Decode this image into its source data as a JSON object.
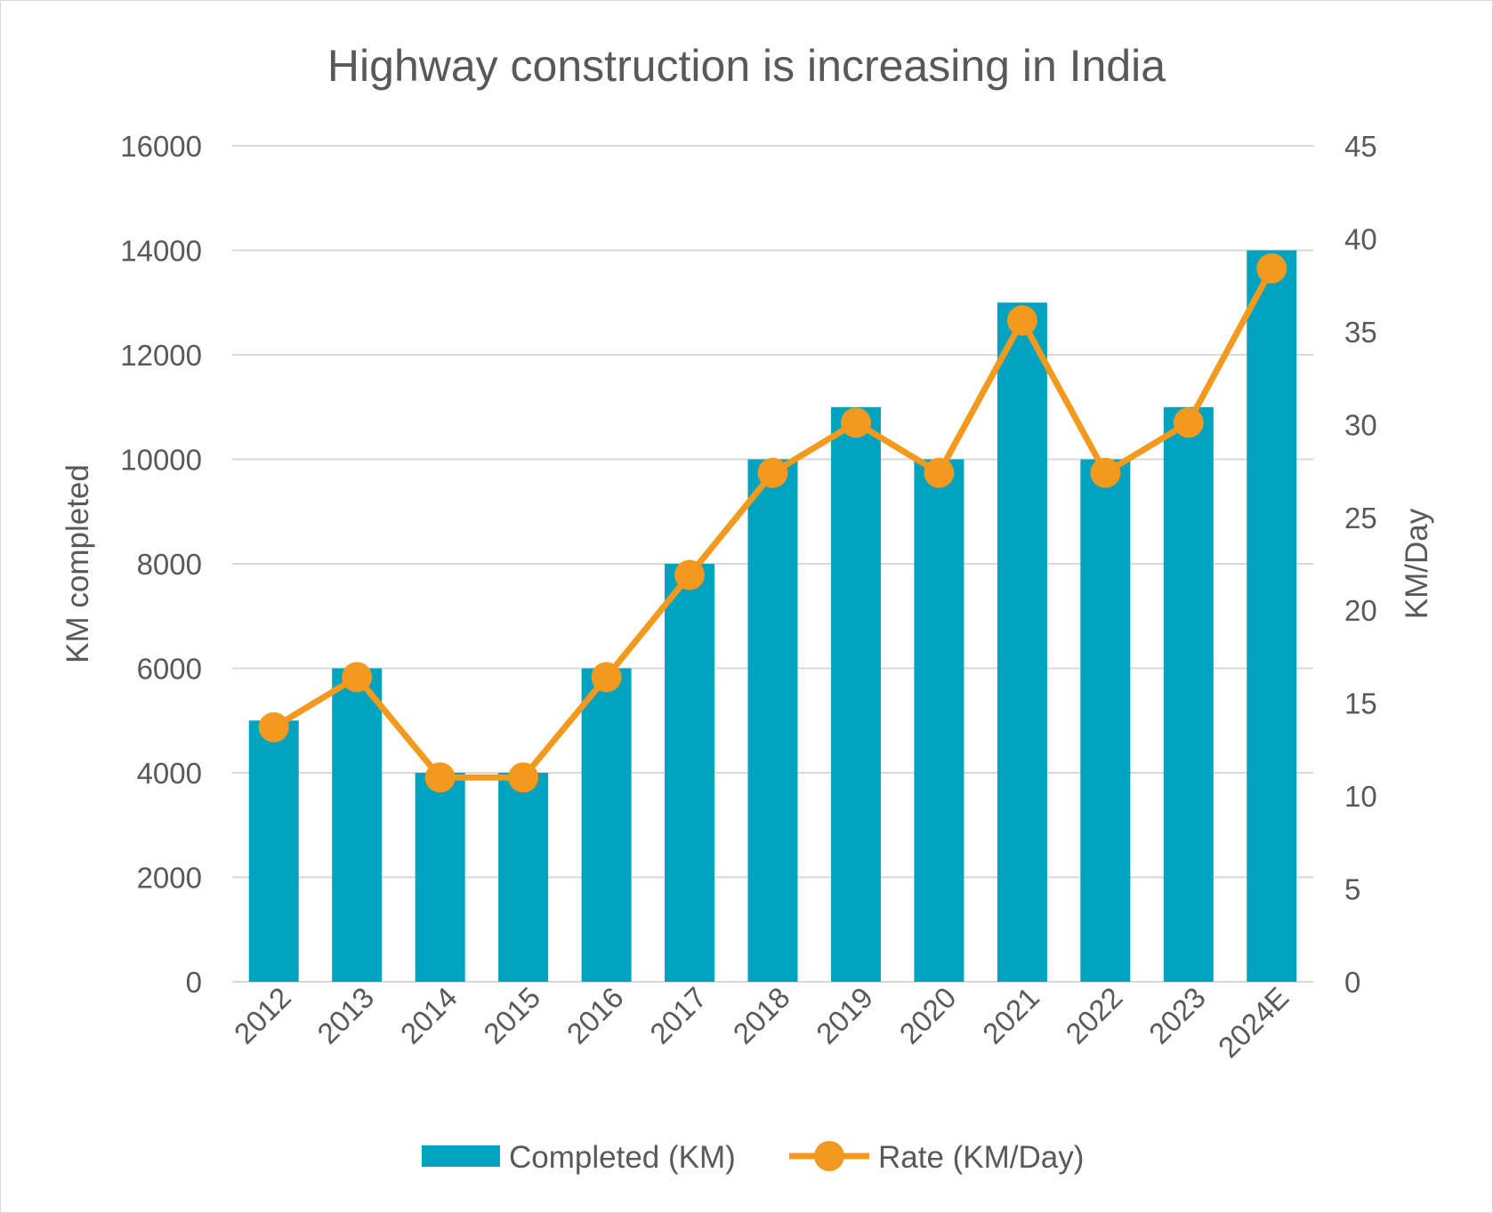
{
  "chart_data": {
    "type": "bar",
    "title": "Highway construction is increasing in India",
    "categories": [
      "2012",
      "2013",
      "2014",
      "2015",
      "2016",
      "2017",
      "2018",
      "2019",
      "2020",
      "2021",
      "2022",
      "2023",
      "2024E"
    ],
    "series": [
      {
        "name": "Completed (KM)",
        "type": "bar",
        "axis": "left",
        "color": "#00A3BF",
        "values": [
          5000,
          6000,
          4000,
          4000,
          6000,
          8000,
          10000,
          11000,
          10000,
          13000,
          10000,
          11000,
          14000
        ]
      },
      {
        "name": "Rate (KM/Day)",
        "type": "line",
        "axis": "right",
        "color": "#F39A1E",
        "marker": "circle",
        "values": [
          13.7,
          16.4,
          11.0,
          11.0,
          16.4,
          21.9,
          27.4,
          30.1,
          27.4,
          35.6,
          27.4,
          30.1,
          38.4
        ]
      }
    ],
    "ylabel": "KM completed",
    "ylim": [
      0,
      16000
    ],
    "yticks": [
      "0",
      "2000",
      "4000",
      "6000",
      "8000",
      "10000",
      "12000",
      "14000",
      "16000"
    ],
    "y2label": "KM/Day",
    "y2lim": [
      0,
      45
    ],
    "y2ticks": [
      "0",
      "5",
      "10",
      "15",
      "20",
      "25",
      "30",
      "35",
      "40",
      "45"
    ],
    "grid": true,
    "gridColor": "#d9d9d9",
    "legend_position": "bottom"
  }
}
